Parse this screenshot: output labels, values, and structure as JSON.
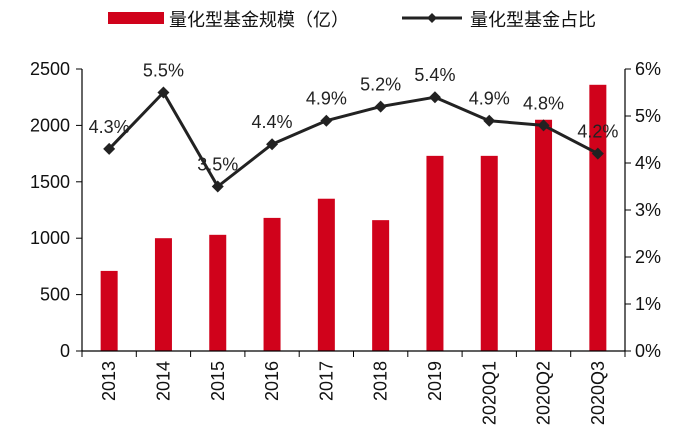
{
  "chart_data": {
    "type": "bar+line",
    "categories": [
      "2013",
      "2014",
      "2015",
      "2016",
      "2017",
      "2018",
      "2019",
      "2020Q1",
      "2020Q2",
      "2020Q3"
    ],
    "series": [
      {
        "name": "量化型基金规模（亿）",
        "type": "bar",
        "axis": "left",
        "color": "#d0021b",
        "values": [
          710,
          1000,
          1030,
          1180,
          1350,
          1160,
          1730,
          1730,
          2050,
          2360
        ]
      },
      {
        "name": "量化型基金占比",
        "type": "line",
        "axis": "right",
        "color": "#222222",
        "values": [
          4.3,
          5.5,
          3.5,
          4.4,
          4.9,
          5.2,
          5.4,
          4.9,
          4.8,
          4.2
        ],
        "data_labels": [
          "4.3%",
          "5.5%",
          "3.5%",
          "4.4%",
          "4.9%",
          "5.2%",
          "5.4%",
          "4.9%",
          "4.8%",
          "4.2%"
        ]
      }
    ],
    "y_left": {
      "min": 0,
      "max": 2500,
      "ticks": [
        0,
        500,
        1000,
        1500,
        2000,
        2500
      ],
      "tick_labels": [
        "0",
        "500",
        "1000",
        "1500",
        "2000",
        "2500"
      ]
    },
    "y_right": {
      "min": 0,
      "max": 6,
      "ticks": [
        0,
        1,
        2,
        3,
        4,
        5,
        6
      ],
      "tick_labels": [
        "0%",
        "1%",
        "2%",
        "3%",
        "4%",
        "5%",
        "6%"
      ]
    },
    "legend_position": "top",
    "grid": false,
    "title": "",
    "xlabel": "",
    "ylabel": ""
  }
}
